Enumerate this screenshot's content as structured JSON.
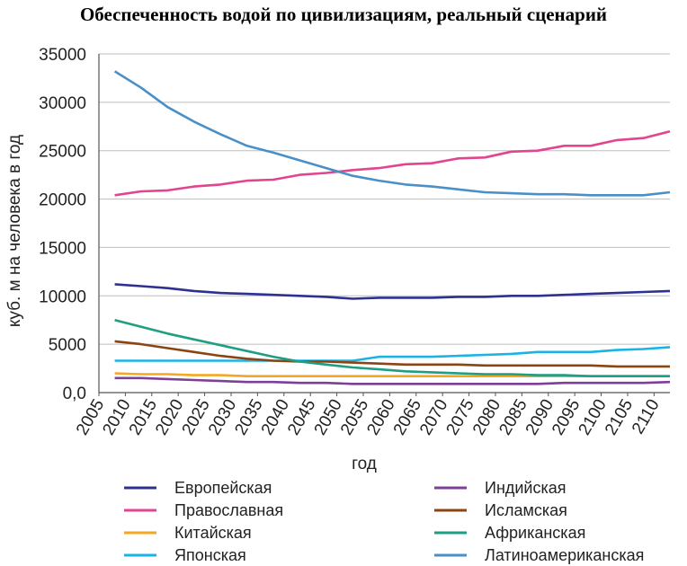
{
  "chart_data": {
    "type": "line",
    "title": "Обеспеченность водой по цивилизациям, реальный сценарий",
    "xlabel": "год",
    "ylabel": "куб. м на человека в год",
    "ylim": [
      0,
      35000
    ],
    "xlim": [
      2005,
      2113
    ],
    "x_ticks": [
      "2005",
      "2010",
      "2015",
      "2020",
      "2025",
      "2030",
      "2035",
      "2040",
      "2045",
      "2050",
      "2055",
      "2060",
      "2065",
      "2070",
      "2075",
      "2080",
      "2085",
      "2090",
      "2095",
      "2100",
      "2105",
      "2110"
    ],
    "y_ticks": [
      "0,0",
      "5000",
      "10000",
      "15000",
      "20000",
      "25000",
      "30000",
      "35000"
    ],
    "grid": "horizontal",
    "legend_position": "bottom",
    "x": [
      2008,
      2013,
      2018,
      2023,
      2028,
      2033,
      2038,
      2043,
      2048,
      2053,
      2058,
      2063,
      2068,
      2073,
      2078,
      2083,
      2088,
      2093,
      2098,
      2103,
      2108,
      2113
    ],
    "series": [
      {
        "name": "Европейская",
        "color": "#2e3192",
        "values": [
          11200,
          11000,
          10800,
          10500,
          10300,
          10200,
          10100,
          10000,
          9900,
          9700,
          9800,
          9800,
          9800,
          9900,
          9900,
          10000,
          10000,
          10100,
          10200,
          10300,
          10400,
          10500
        ]
      },
      {
        "name": "Православная",
        "color": "#e2458f",
        "values": [
          20400,
          20800,
          20900,
          21300,
          21500,
          21900,
          22000,
          22500,
          22700,
          23000,
          23200,
          23600,
          23700,
          24200,
          24300,
          24900,
          25000,
          25500,
          25500,
          26100,
          26300,
          27000
        ]
      },
      {
        "name": "Китайская",
        "color": "#f5a623",
        "values": [
          2000,
          1900,
          1900,
          1800,
          1800,
          1700,
          1700,
          1700,
          1700,
          1700,
          1700,
          1700,
          1700,
          1700,
          1700,
          1700,
          1700,
          1700,
          1700,
          1700,
          1700,
          1700
        ]
      },
      {
        "name": "Японская",
        "color": "#1ab3e6",
        "values": [
          3300,
          3300,
          3300,
          3300,
          3300,
          3300,
          3300,
          3300,
          3300,
          3300,
          3700,
          3700,
          3700,
          3800,
          3900,
          4000,
          4200,
          4200,
          4200,
          4400,
          4500,
          4700
        ]
      },
      {
        "name": "Индийская",
        "color": "#7e3f98",
        "values": [
          1500,
          1500,
          1400,
          1300,
          1200,
          1100,
          1100,
          1000,
          1000,
          900,
          900,
          900,
          900,
          900,
          900,
          900,
          900,
          1000,
          1000,
          1000,
          1000,
          1100
        ]
      },
      {
        "name": "Исламская",
        "color": "#8b4513",
        "values": [
          5300,
          5000,
          4600,
          4200,
          3800,
          3500,
          3300,
          3200,
          3200,
          3100,
          3000,
          2900,
          2900,
          2900,
          2800,
          2800,
          2800,
          2800,
          2800,
          2700,
          2700,
          2700
        ]
      },
      {
        "name": "Африканская",
        "color": "#1e9e82",
        "values": [
          7500,
          6800,
          6100,
          5500,
          4900,
          4300,
          3700,
          3200,
          2900,
          2600,
          2400,
          2200,
          2100,
          2000,
          1900,
          1900,
          1800,
          1800,
          1700,
          1700,
          1700,
          1700
        ]
      },
      {
        "name": "Латиноамериканская",
        "color": "#4a90c8",
        "values": [
          33200,
          31500,
          29500,
          28000,
          26700,
          25500,
          24800,
          24000,
          23200,
          22400,
          21900,
          21500,
          21300,
          21000,
          20700,
          20600,
          20500,
          20500,
          20400,
          20400,
          20400,
          20700
        ]
      }
    ]
  }
}
